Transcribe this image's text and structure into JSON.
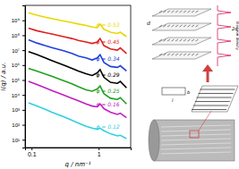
{
  "chart_data": {
    "type": "line",
    "log": true,
    "x_label": "q / nm⁻¹",
    "y_label": "I(q) / a.u.",
    "x": [
      0.09,
      0.12,
      0.16,
      0.2,
      0.3,
      0.4,
      0.5,
      0.65,
      0.8,
      0.95,
      1.05,
      1.2,
      1.5,
      1.9,
      2.1,
      2.6
    ],
    "xlim": [
      0.08,
      3
    ],
    "xticks": [
      0.1,
      1
    ],
    "ylim": [
      3,
      10000000000
    ],
    "yticks": [
      {
        "value": 10,
        "label": "10¹"
      },
      {
        "value": 100,
        "label": "10²"
      },
      {
        "value": 1000,
        "label": "10³"
      },
      {
        "value": 10000,
        "label": "10⁴"
      },
      {
        "value": 100000,
        "label": "10⁵"
      },
      {
        "value": 1000000,
        "label": "10⁶"
      },
      {
        "value": 10000000,
        "label": "10⁷"
      },
      {
        "value": 100000000,
        "label": "10⁸"
      },
      {
        "value": 1000000000,
        "label": "10⁹"
      }
    ],
    "series": [
      {
        "name": "ϕ = 0.53",
        "color": "#e8d800",
        "values": [
          3200000000,
          2200000000,
          1600000000,
          1300000000,
          900000000,
          700000000,
          560000000,
          450000000,
          350000000,
          320000000,
          560000000,
          250000000,
          160000000,
          130000000,
          160000000,
          80000000
        ]
      },
      {
        "name": "ϕ = 0.45",
        "color": "#e02020",
        "values": [
          300000000,
          200000000,
          150000000,
          120000000,
          80000000,
          60000000,
          45000000,
          35000000,
          28000000,
          35000000,
          60000000,
          20000000,
          12000000,
          10000000,
          14000000,
          6000000
        ]
      },
      {
        "name": "ϕ = 0.34",
        "color": "#2040e0",
        "values": [
          50000000,
          30000000,
          20000000,
          15000000,
          9000000,
          6000000,
          4000000,
          3000000,
          2200000,
          3000000,
          5000000,
          1500000,
          800000,
          700000,
          900000,
          400000
        ]
      },
      {
        "name": "ϕ = 0.29",
        "color": "#000000",
        "values": [
          8000000,
          5000000,
          3000000,
          2000000,
          1000000,
          600000,
          400000,
          260000,
          200000,
          300000,
          500000,
          150000,
          70000,
          60000,
          80000,
          30000
        ]
      },
      {
        "name": "ϕ = 0.25",
        "color": "#20a020",
        "values": [
          600000,
          400000,
          250000,
          180000,
          90000,
          55000,
          35000,
          22000,
          18000,
          25000,
          40000,
          12000,
          6000,
          5000,
          6500,
          2500
        ]
      },
      {
        "name": "ϕ = 0.16",
        "color": "#c020c0",
        "values": [
          80000,
          50000,
          30000,
          20000,
          10000,
          6000,
          4000,
          2500,
          1800,
          1600,
          2500,
          1200,
          700,
          500,
          600,
          300
        ]
      },
      {
        "name": "ϕ = 0.12",
        "color": "#30d0e0",
        "values": [
          3000,
          1800,
          1100,
          700,
          350,
          200,
          130,
          80,
          60,
          50,
          60,
          40,
          25,
          18,
          20,
          12
        ]
      }
    ]
  },
  "schematic": {
    "density_label": "Electron density",
    "spacing_label": "d",
    "double_spacing_label": "2d",
    "length_label": "l",
    "width_label": "b"
  }
}
